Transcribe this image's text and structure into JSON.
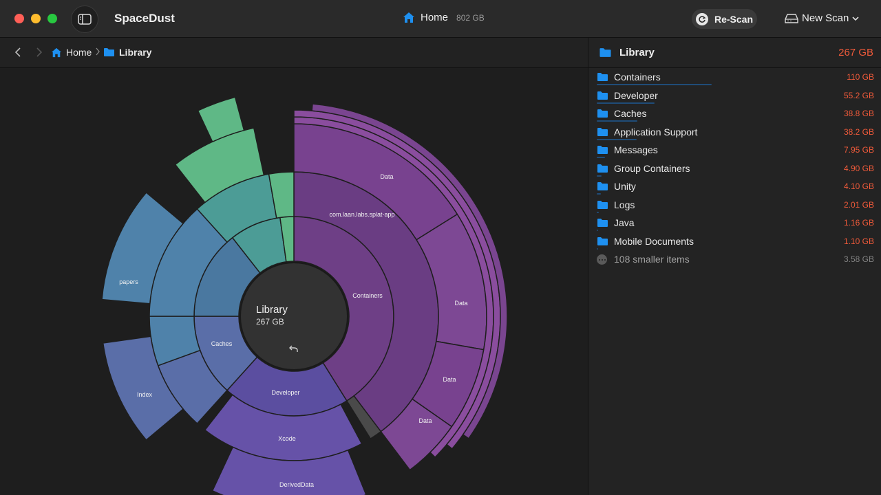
{
  "app": {
    "title": "SpaceDust"
  },
  "location": {
    "name": "Home",
    "size": "802 GB"
  },
  "toolbar": {
    "rescan_label": "Re-Scan",
    "newscan_label": "New Scan"
  },
  "breadcrumb": [
    {
      "label": "Home"
    },
    {
      "label": "Library"
    }
  ],
  "center": {
    "title": "Library",
    "size": "267 GB"
  },
  "panel": {
    "title": "Library",
    "size": "267 GB",
    "items": [
      {
        "name": "Containers",
        "size": "110 GB",
        "fraction": 0.412
      },
      {
        "name": "Developer",
        "size": "55.2 GB",
        "fraction": 0.207
      },
      {
        "name": "Caches",
        "size": "38.8 GB",
        "fraction": 0.145
      },
      {
        "name": "Application Support",
        "size": "38.2 GB",
        "fraction": 0.143
      },
      {
        "name": "Messages",
        "size": "7.95 GB",
        "fraction": 0.03
      },
      {
        "name": "Group Containers",
        "size": "4.90 GB",
        "fraction": 0.018
      },
      {
        "name": "Unity",
        "size": "4.10 GB",
        "fraction": 0.015
      },
      {
        "name": "Logs",
        "size": "2.01 GB",
        "fraction": 0.0075
      },
      {
        "name": "Java",
        "size": "1.16 GB",
        "fraction": 0.004
      },
      {
        "name": "Mobile Documents",
        "size": "1.10 GB",
        "fraction": 0.004
      }
    ],
    "smaller": {
      "name": "108 smaller items",
      "size": "3.58 GB"
    }
  },
  "sunburst_labels": {
    "containers": "Containers",
    "splat": "com.laan.labs.splat-app",
    "data1": "Data",
    "data2": "Data",
    "data3": "Data",
    "data4": "Data",
    "developer": "Developer",
    "xcode": "Xcode",
    "deriveddata": "DerivedData",
    "caches": "Caches",
    "papers": "papers",
    "index": "Index"
  },
  "colors": {
    "purple": "#6e3f86",
    "indigo": "#5b4ea0",
    "blue": "#4a78a0",
    "green": "#5fb886",
    "accent_size": "#ef5a3a",
    "folder": "#1e90f0"
  }
}
